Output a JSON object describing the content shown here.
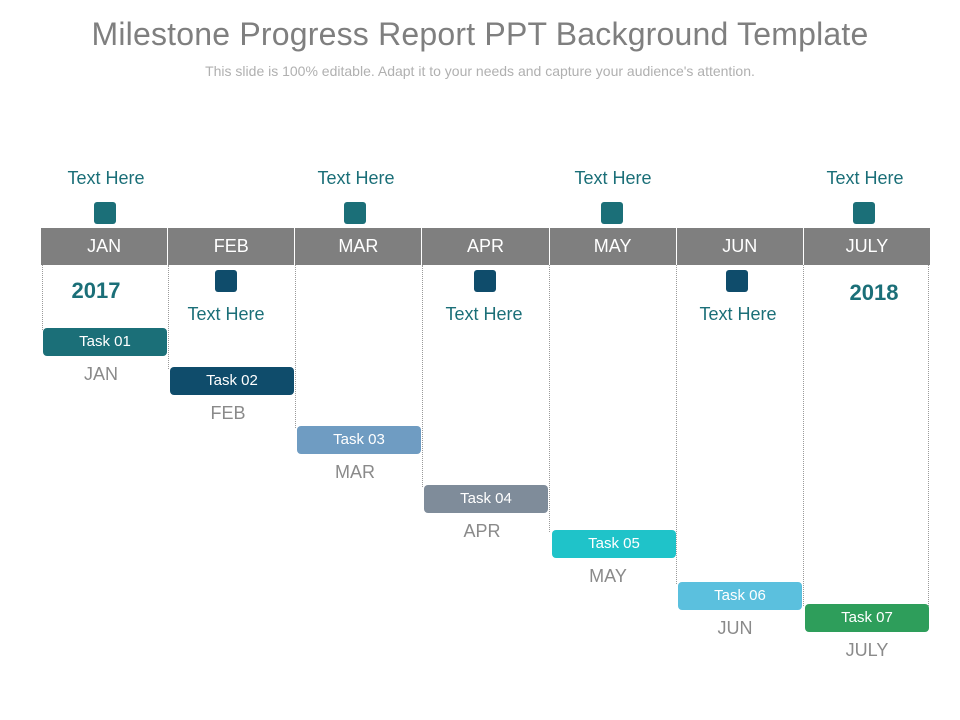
{
  "header": {
    "title": "Milestone Progress Report PPT Background Template",
    "subtitle": "This slide is 100% editable. Adapt it to your needs and capture your audience's attention."
  },
  "top_labels": [
    "Text Here",
    "Text Here",
    "Text Here",
    "Text Here"
  ],
  "mid_labels": [
    "Text Here",
    "Text Here",
    "Text Here"
  ],
  "months": [
    "JAN",
    "FEB",
    "MAR",
    "APR",
    "MAY",
    "JUN",
    "JULY"
  ],
  "years": {
    "start": "2017",
    "end": "2018"
  },
  "tasks": [
    {
      "label": "Task 01",
      "month": "JAN",
      "color": "#1b6f78"
    },
    {
      "label": "Task 02",
      "month": "FEB",
      "color": "#0f4c6b"
    },
    {
      "label": "Task 03",
      "month": "MAR",
      "color": "#6f9cc2"
    },
    {
      "label": "Task 04",
      "month": "APR",
      "color": "#7f8c9a"
    },
    {
      "label": "Task 05",
      "month": "MAY",
      "color": "#1fc3c9"
    },
    {
      "label": "Task 06",
      "month": "JUN",
      "color": "#5bc0de"
    },
    {
      "label": "Task 07",
      "month": "JULY",
      "color": "#2e9e5b"
    }
  ],
  "colors": {
    "teal": "#1b6f78",
    "navy": "#0f4c6b",
    "gray_bar": "#7f7f7f"
  }
}
